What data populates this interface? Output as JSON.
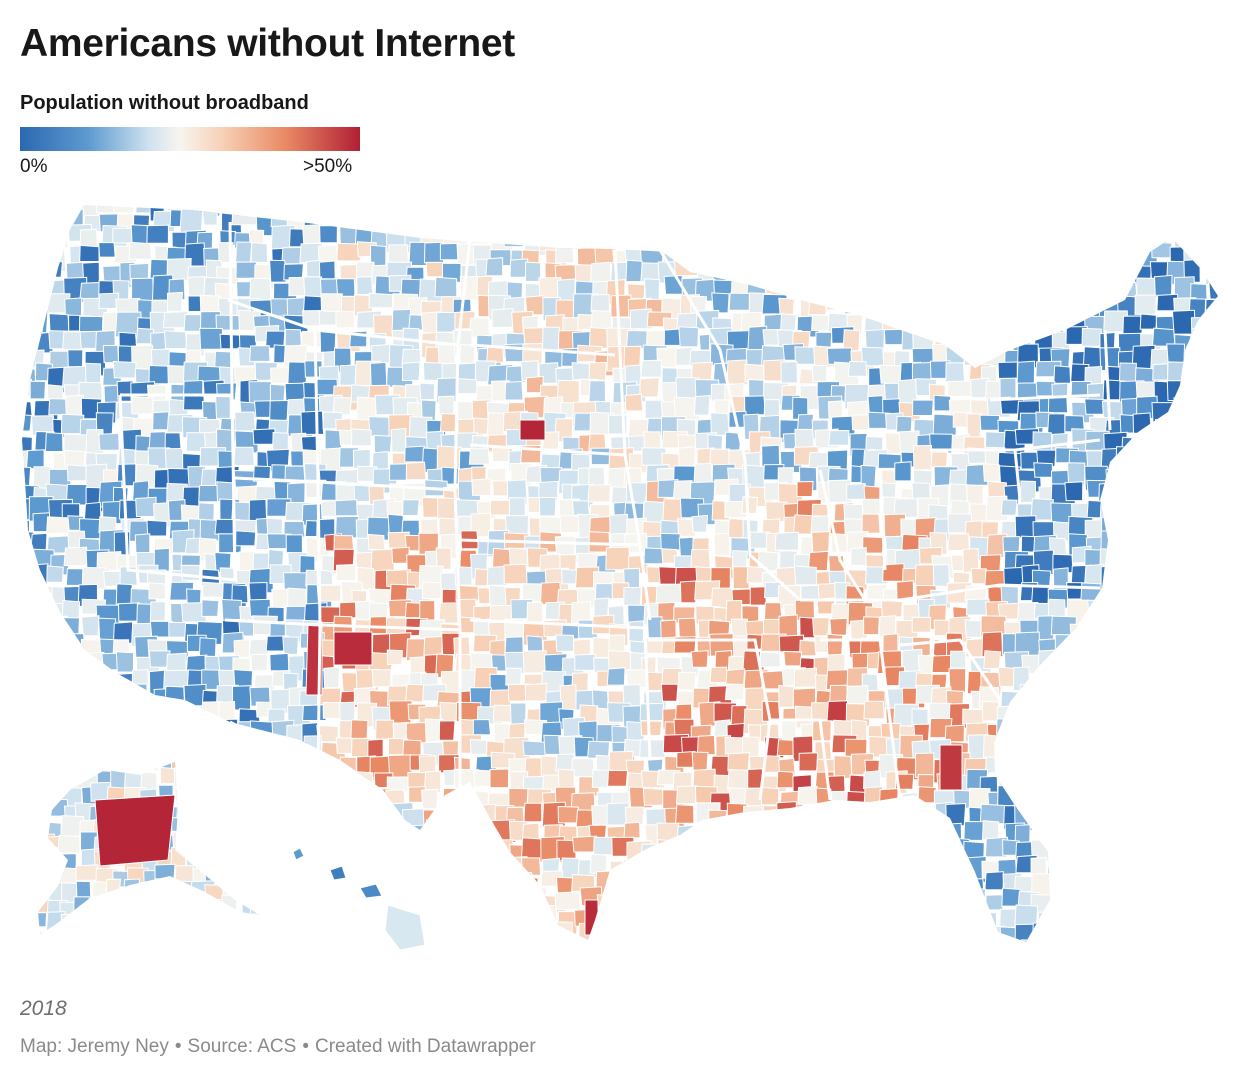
{
  "header": {
    "title": "Americans without Internet",
    "subtitle": "Population without broadband"
  },
  "legend": {
    "min_label": "0%",
    "max_label": ">50%",
    "colors": [
      "#2c68b0",
      "#5d9ad0",
      "#cfe2ef",
      "#f7f5ef",
      "#f7cfb4",
      "#e98a65",
      "#b21f35"
    ]
  },
  "map": {
    "type": "county choropleth",
    "metric": "Population without broadband",
    "regions": [
      "contiguous-us",
      "alaska",
      "hawaii"
    ]
  },
  "footer": {
    "year": "2018",
    "byline": "Map: Jeremy Ney",
    "source": "Source: ACS",
    "tool": "Created with Datawrapper",
    "separator": "•"
  }
}
